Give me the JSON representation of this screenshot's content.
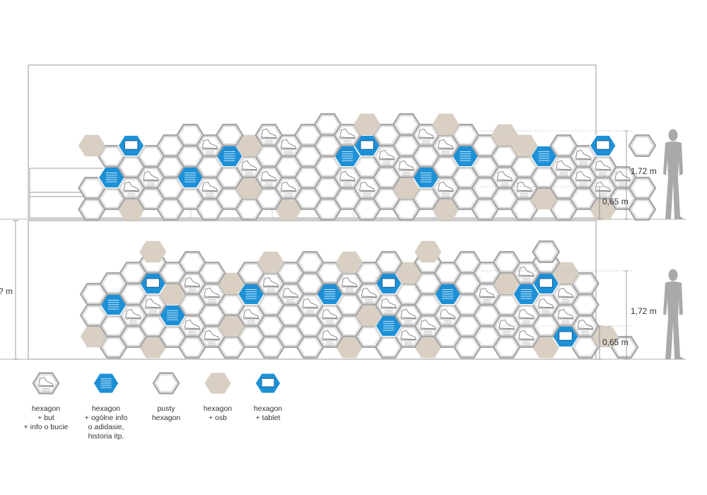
{
  "dimensions": {
    "height_total": "1,72 m",
    "height_base": "0,65 m",
    "left_cut_label": "? m"
  },
  "legend": [
    {
      "key": "shoe",
      "label": "hexagon\n+ but\n+ info o bucie"
    },
    {
      "key": "info",
      "label": "hexagon\n+ ogólne info\no adidasie,\nhistoria itp."
    },
    {
      "key": "empty",
      "label": "pusty\nhexagon"
    },
    {
      "key": "osb",
      "label": "hexagon\n+ osb"
    },
    {
      "key": "tablet",
      "label": "hexagon\n+ tablet"
    }
  ],
  "colors": {
    "blue": "#1e90d6",
    "osb": "#d9cfc3",
    "outline": "#a8a8a8",
    "line": "#9a9a9a"
  },
  "icons": {
    "person": "person-silhouette-icon",
    "shoe": "shoe-sketch-icon",
    "tablet": "tablet-icon"
  }
}
